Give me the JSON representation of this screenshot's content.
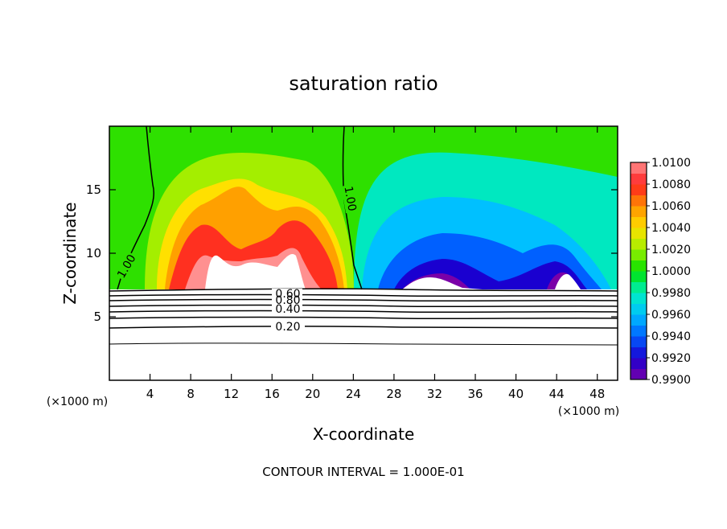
{
  "chart_data": {
    "type": "heatmap",
    "title": "saturation ratio",
    "xlabel": "X-coordinate",
    "ylabel": "Z-coordinate",
    "x_unit_left": "(×1000 m)",
    "x_unit_right": "(×1000 m)",
    "xlim": [
      0,
      50
    ],
    "ylim": [
      0,
      20
    ],
    "x_ticks": [
      4,
      8,
      12,
      16,
      20,
      24,
      28,
      32,
      36,
      40,
      44,
      48
    ],
    "y_ticks": [
      5,
      10,
      15
    ],
    "colorbar": {
      "ticks": [
        "0.9900",
        "0.9920",
        "0.9940",
        "0.9960",
        "0.9980",
        "1.0000",
        "1.0020",
        "1.0040",
        "1.0060",
        "1.0080",
        "1.0100"
      ],
      "range": [
        0.99,
        1.01
      ],
      "colors": [
        "#7a00a8",
        "#1a00d0",
        "#0060ff",
        "#00c0ff",
        "#00f0c0",
        "#00e000",
        "#a0f000",
        "#ffe000",
        "#ff9000",
        "#ff2020",
        "#ff9090"
      ]
    },
    "contour_labels": [
      {
        "text": "1.00"
      },
      {
        "text": "1.00"
      },
      {
        "text": "0.60"
      },
      {
        "text": "0.80"
      },
      {
        "text": "0.40"
      },
      {
        "text": "0.20"
      }
    ],
    "footer": "CONTOUR INTERVAL = 1.000E-01",
    "grid": false
  }
}
